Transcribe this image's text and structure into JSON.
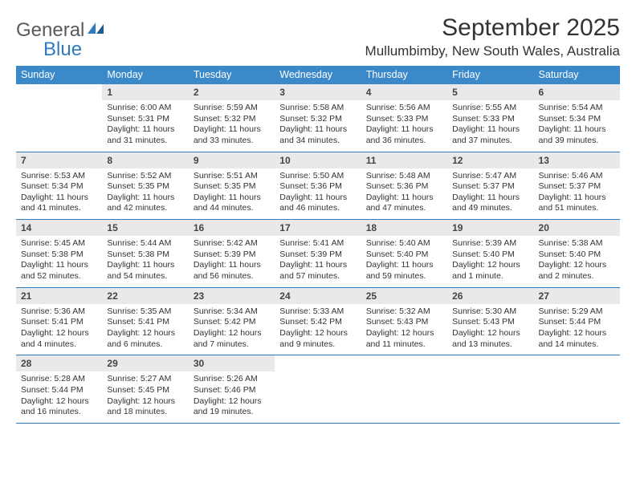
{
  "logo": {
    "text1": "General",
    "text2": "Blue"
  },
  "title": "September 2025",
  "location": "Mullumbimby, New South Wales, Australia",
  "colors": {
    "header_bg": "#3b89c9",
    "daynum_bg": "#e9e9e9",
    "border": "#2f7bbf",
    "text": "#333333",
    "logo_gray": "#5a5a5a",
    "logo_blue": "#2f7bbf"
  },
  "weekdays": [
    "Sunday",
    "Monday",
    "Tuesday",
    "Wednesday",
    "Thursday",
    "Friday",
    "Saturday"
  ],
  "weeks": [
    [
      null,
      {
        "n": "1",
        "sunrise": "6:00 AM",
        "sunset": "5:31 PM",
        "daylight": "11 hours and 31 minutes."
      },
      {
        "n": "2",
        "sunrise": "5:59 AM",
        "sunset": "5:32 PM",
        "daylight": "11 hours and 33 minutes."
      },
      {
        "n": "3",
        "sunrise": "5:58 AM",
        "sunset": "5:32 PM",
        "daylight": "11 hours and 34 minutes."
      },
      {
        "n": "4",
        "sunrise": "5:56 AM",
        "sunset": "5:33 PM",
        "daylight": "11 hours and 36 minutes."
      },
      {
        "n": "5",
        "sunrise": "5:55 AM",
        "sunset": "5:33 PM",
        "daylight": "11 hours and 37 minutes."
      },
      {
        "n": "6",
        "sunrise": "5:54 AM",
        "sunset": "5:34 PM",
        "daylight": "11 hours and 39 minutes."
      }
    ],
    [
      {
        "n": "7",
        "sunrise": "5:53 AM",
        "sunset": "5:34 PM",
        "daylight": "11 hours and 41 minutes."
      },
      {
        "n": "8",
        "sunrise": "5:52 AM",
        "sunset": "5:35 PM",
        "daylight": "11 hours and 42 minutes."
      },
      {
        "n": "9",
        "sunrise": "5:51 AM",
        "sunset": "5:35 PM",
        "daylight": "11 hours and 44 minutes."
      },
      {
        "n": "10",
        "sunrise": "5:50 AM",
        "sunset": "5:36 PM",
        "daylight": "11 hours and 46 minutes."
      },
      {
        "n": "11",
        "sunrise": "5:48 AM",
        "sunset": "5:36 PM",
        "daylight": "11 hours and 47 minutes."
      },
      {
        "n": "12",
        "sunrise": "5:47 AM",
        "sunset": "5:37 PM",
        "daylight": "11 hours and 49 minutes."
      },
      {
        "n": "13",
        "sunrise": "5:46 AM",
        "sunset": "5:37 PM",
        "daylight": "11 hours and 51 minutes."
      }
    ],
    [
      {
        "n": "14",
        "sunrise": "5:45 AM",
        "sunset": "5:38 PM",
        "daylight": "11 hours and 52 minutes."
      },
      {
        "n": "15",
        "sunrise": "5:44 AM",
        "sunset": "5:38 PM",
        "daylight": "11 hours and 54 minutes."
      },
      {
        "n": "16",
        "sunrise": "5:42 AM",
        "sunset": "5:39 PM",
        "daylight": "11 hours and 56 minutes."
      },
      {
        "n": "17",
        "sunrise": "5:41 AM",
        "sunset": "5:39 PM",
        "daylight": "11 hours and 57 minutes."
      },
      {
        "n": "18",
        "sunrise": "5:40 AM",
        "sunset": "5:40 PM",
        "daylight": "11 hours and 59 minutes."
      },
      {
        "n": "19",
        "sunrise": "5:39 AM",
        "sunset": "5:40 PM",
        "daylight": "12 hours and 1 minute."
      },
      {
        "n": "20",
        "sunrise": "5:38 AM",
        "sunset": "5:40 PM",
        "daylight": "12 hours and 2 minutes."
      }
    ],
    [
      {
        "n": "21",
        "sunrise": "5:36 AM",
        "sunset": "5:41 PM",
        "daylight": "12 hours and 4 minutes."
      },
      {
        "n": "22",
        "sunrise": "5:35 AM",
        "sunset": "5:41 PM",
        "daylight": "12 hours and 6 minutes."
      },
      {
        "n": "23",
        "sunrise": "5:34 AM",
        "sunset": "5:42 PM",
        "daylight": "12 hours and 7 minutes."
      },
      {
        "n": "24",
        "sunrise": "5:33 AM",
        "sunset": "5:42 PM",
        "daylight": "12 hours and 9 minutes."
      },
      {
        "n": "25",
        "sunrise": "5:32 AM",
        "sunset": "5:43 PM",
        "daylight": "12 hours and 11 minutes."
      },
      {
        "n": "26",
        "sunrise": "5:30 AM",
        "sunset": "5:43 PM",
        "daylight": "12 hours and 13 minutes."
      },
      {
        "n": "27",
        "sunrise": "5:29 AM",
        "sunset": "5:44 PM",
        "daylight": "12 hours and 14 minutes."
      }
    ],
    [
      {
        "n": "28",
        "sunrise": "5:28 AM",
        "sunset": "5:44 PM",
        "daylight": "12 hours and 16 minutes."
      },
      {
        "n": "29",
        "sunrise": "5:27 AM",
        "sunset": "5:45 PM",
        "daylight": "12 hours and 18 minutes."
      },
      {
        "n": "30",
        "sunrise": "5:26 AM",
        "sunset": "5:46 PM",
        "daylight": "12 hours and 19 minutes."
      },
      null,
      null,
      null,
      null
    ]
  ],
  "labels": {
    "sunrise": "Sunrise:",
    "sunset": "Sunset:",
    "daylight": "Daylight:"
  }
}
